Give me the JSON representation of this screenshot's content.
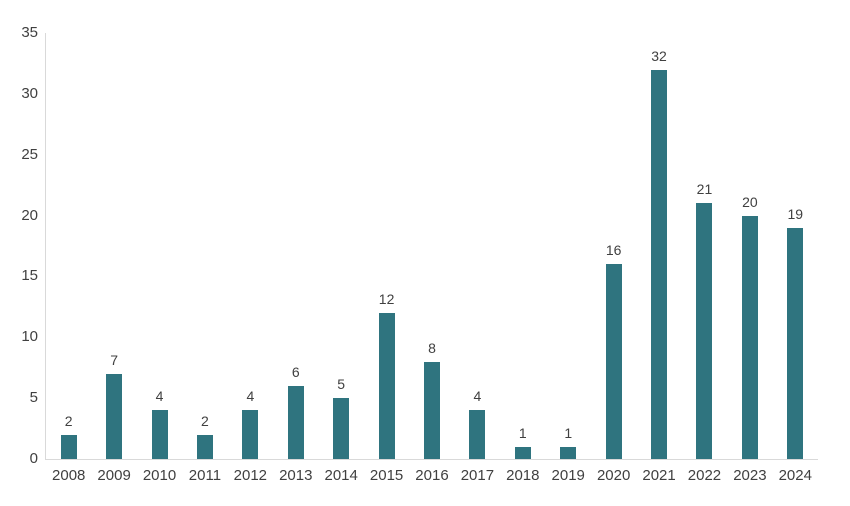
{
  "chart_data": {
    "type": "bar",
    "title": "",
    "xlabel": "",
    "ylabel": "",
    "categories": [
      "2008",
      "2009",
      "2010",
      "2011",
      "2012",
      "2013",
      "2014",
      "2015",
      "2016",
      "2017",
      "2018",
      "2019",
      "2020",
      "2021",
      "2022",
      "2023",
      "2024"
    ],
    "values": [
      2,
      7,
      4,
      2,
      4,
      6,
      5,
      12,
      8,
      4,
      1,
      1,
      16,
      32,
      21,
      20,
      19
    ],
    "ylim": [
      0,
      35
    ],
    "yticks": [
      0,
      5,
      10,
      15,
      20,
      25,
      30,
      35
    ],
    "grid": false,
    "legend": false,
    "show_data_labels": true,
    "colors": {
      "bar": "#2F747F",
      "text": "#404040",
      "axis": "#D9D9D9",
      "background": "#FFFFFF"
    }
  }
}
